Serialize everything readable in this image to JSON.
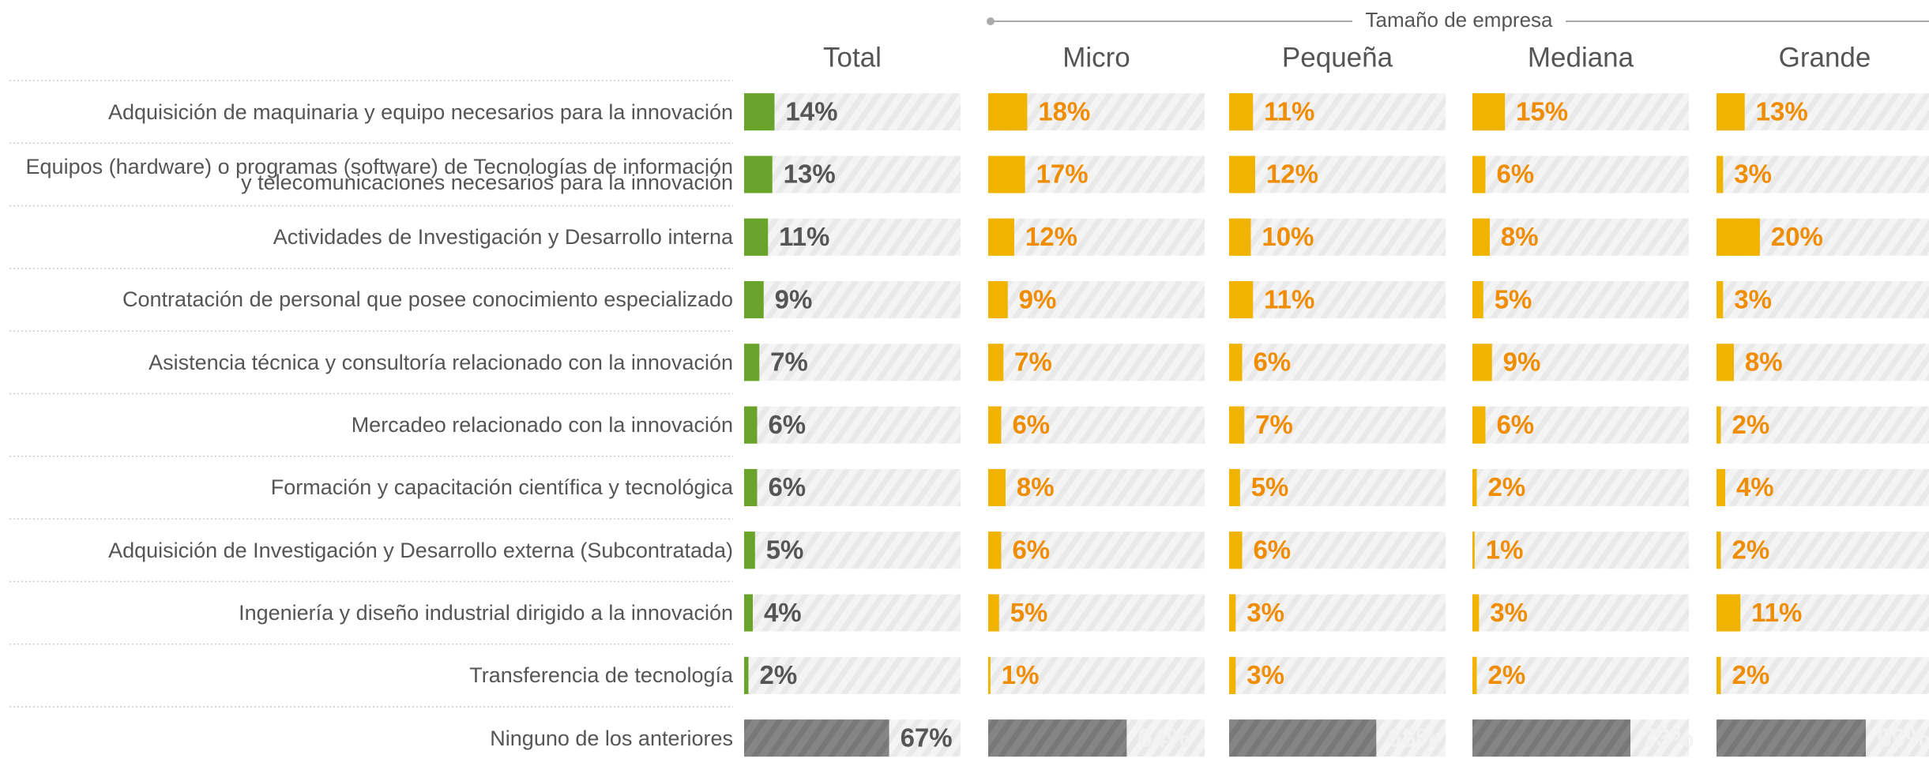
{
  "chart_data": {
    "type": "bar",
    "group_title": "Tamaño de empresa",
    "categories": [
      "Adquisición de maquinaria y equipo necesarios para la innovación",
      "Equipos (hardware) o programas (software) de Tecnologías de información y telecomunicaciones necesarios para la innovación",
      "Actividades de Investigación y Desarrollo interna",
      "Contratación de personal que posee conocimiento especializado",
      "Asistencia técnica y consultoría relacionado con la innovación",
      "Mercadeo relacionado con la innovación",
      "Formación y capacitación científica y tecnológica",
      "Adquisición de Investigación y Desarrollo externa (Subcontratada)",
      "Ingeniería y diseño industrial dirigido a la innovación",
      "Transferencia de tecnología",
      "Ninguno de los anteriores"
    ],
    "xlim": [
      0,
      100
    ],
    "highlight_color": "#7f7f7f",
    "series": [
      {
        "name": "Total",
        "color": "#6aa329",
        "label_color": "#555555",
        "values": [
          14,
          13,
          11,
          9,
          7,
          6,
          6,
          5,
          4,
          2,
          67
        ],
        "value_labels": [
          "14%",
          "13%",
          "11%",
          "9%",
          "7%",
          "6%",
          "6%",
          "5%",
          "4%",
          "2%",
          "67%"
        ]
      },
      {
        "name": "Micro",
        "color": "#f0b400",
        "label_color": "#f08c00",
        "values": [
          18,
          17,
          12,
          9,
          7,
          6,
          8,
          6,
          5,
          1,
          64
        ],
        "value_labels": [
          "18%",
          "17%",
          "12%",
          "9%",
          "7%",
          "6%",
          "8%",
          "6%",
          "5%",
          "1%",
          "64%"
        ]
      },
      {
        "name": "Pequeña",
        "color": "#f0b400",
        "label_color": "#f08c00",
        "values": [
          11,
          12,
          10,
          11,
          6,
          7,
          5,
          6,
          3,
          3,
          68
        ],
        "value_labels": [
          "11%",
          "12%",
          "10%",
          "11%",
          "6%",
          "7%",
          "5%",
          "6%",
          "3%",
          "3%",
          "68%"
        ]
      },
      {
        "name": "Mediana",
        "color": "#f0b400",
        "label_color": "#f08c00",
        "values": [
          15,
          6,
          8,
          5,
          9,
          6,
          2,
          1,
          3,
          2,
          73
        ],
        "value_labels": [
          "15%",
          "6%",
          "8%",
          "5%",
          "9%",
          "6%",
          "2%",
          "1%",
          "3%",
          "2%",
          "73%"
        ]
      },
      {
        "name": "Grande",
        "color": "#f0b400",
        "label_color": "#f08c00",
        "values": [
          13,
          3,
          20,
          3,
          8,
          2,
          4,
          2,
          11,
          2,
          69
        ],
        "value_labels": [
          "13%",
          "3%",
          "20%",
          "3%",
          "8%",
          "2%",
          "4%",
          "2%",
          "11%",
          "2%",
          "69%"
        ]
      }
    ]
  }
}
